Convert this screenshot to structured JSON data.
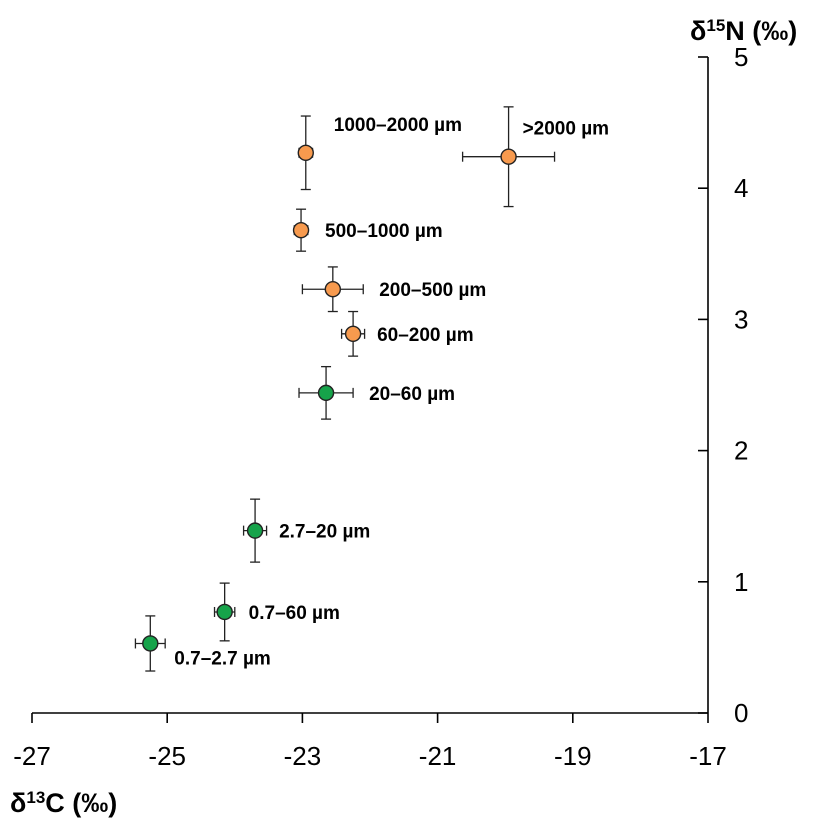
{
  "chart_data": {
    "type": "scatter",
    "xlabel": {
      "prefix": "δ",
      "sup": "13",
      "suffix": "C (‰)"
    },
    "ylabel": {
      "prefix": "δ",
      "sup": "15",
      "suffix": "N (‰)"
    },
    "xlim": [
      -27,
      -17
    ],
    "ylim": [
      0,
      5
    ],
    "x_ticks": [
      -27,
      -25,
      -23,
      -21,
      -19,
      -17
    ],
    "x_tick_labels": [
      "-27",
      "-25",
      "-23",
      "-21",
      "-19",
      "-17"
    ],
    "y_ticks": [
      0,
      1,
      2,
      3,
      4,
      5
    ],
    "y_tick_labels": [
      "0",
      "1",
      "2",
      "3",
      "4",
      "5"
    ],
    "grid": false,
    "colors": {
      "orange": "#F79A4E",
      "green": "#16A34A",
      "outline": "#222222"
    },
    "points": [
      {
        "label": "1000–2000 µm",
        "x": -22.95,
        "y": 4.27,
        "xerr": 0.1,
        "yerr": 0.28,
        "color": "orange",
        "label_side": "right-upper"
      },
      {
        "label": ">2000 µm",
        "x": -19.95,
        "y": 4.24,
        "xerr": 0.68,
        "yerr": 0.38,
        "color": "orange",
        "label_side": "right-upper"
      },
      {
        "label": "500–1000 µm",
        "x": -23.02,
        "y": 3.68,
        "xerr": 0.1,
        "yerr": 0.16,
        "color": "orange",
        "label_side": "right"
      },
      {
        "label": "200–500 µm",
        "x": -22.55,
        "y": 3.23,
        "xerr": 0.45,
        "yerr": 0.17,
        "color": "orange",
        "label_side": "right"
      },
      {
        "label": "60–200 µm",
        "x": -22.25,
        "y": 2.89,
        "xerr": 0.17,
        "yerr": 0.17,
        "color": "orange",
        "label_side": "right"
      },
      {
        "label": "20–60 µm",
        "x": -22.65,
        "y": 2.44,
        "xerr": 0.4,
        "yerr": 0.2,
        "color": "green",
        "label_side": "right"
      },
      {
        "label": "2.7–20 µm",
        "x": -23.7,
        "y": 1.39,
        "xerr": 0.17,
        "yerr": 0.24,
        "color": "green",
        "label_side": "right"
      },
      {
        "label": "0.7–60 µm",
        "x": -24.15,
        "y": 0.77,
        "xerr": 0.15,
        "yerr": 0.22,
        "color": "green",
        "label_side": "right"
      },
      {
        "label": "0.7–2.7 µm",
        "x": -25.25,
        "y": 0.53,
        "xerr": 0.22,
        "yerr": 0.21,
        "color": "green",
        "label_side": "right-lower"
      }
    ]
  }
}
